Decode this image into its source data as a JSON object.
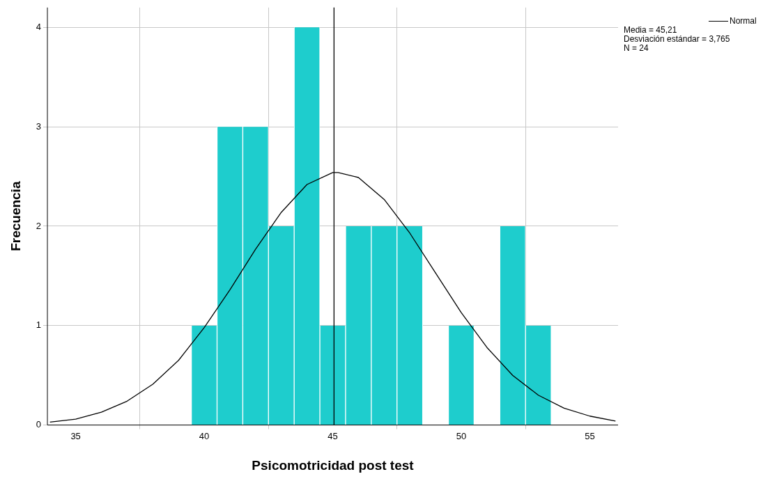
{
  "chart_data": {
    "type": "histogram",
    "xlabel": "Psicomotricidad post test",
    "ylabel": "Frecuencia",
    "bins": [
      39.5,
      40.5,
      41.5,
      42.5,
      43.5,
      44.5,
      45.5,
      46.5,
      47.5,
      48.5,
      49.5,
      50.5,
      51.5,
      52.5,
      53.5
    ],
    "values": [
      1,
      3,
      3,
      2,
      4,
      1,
      2,
      2,
      2,
      0,
      1,
      0,
      2,
      1
    ],
    "color": "#1ecdcd",
    "series": [
      {
        "name": "Normal",
        "type": "line",
        "color": "#000000",
        "x": [
          34,
          35,
          36,
          37,
          38,
          39,
          40,
          41,
          42,
          43,
          44,
          45,
          45.21,
          46,
          47,
          48,
          49,
          50,
          51,
          52,
          53,
          54,
          55,
          56
        ],
        "values": [
          0.03,
          0.06,
          0.13,
          0.24,
          0.41,
          0.65,
          0.98,
          1.36,
          1.77,
          2.14,
          2.42,
          2.54,
          2.54,
          2.49,
          2.27,
          1.93,
          1.53,
          1.13,
          0.78,
          0.5,
          0.3,
          0.17,
          0.09,
          0.04
        ]
      }
    ],
    "ref_lines": [
      {
        "axis": "x",
        "value": 45.05,
        "color": "#000000"
      }
    ],
    "annotations": [
      "Media = 45,21",
      "Desviación estándar = 3,765",
      "N = 24"
    ],
    "xlim": [
      33.9,
      56.1
    ],
    "xticks": [
      35,
      40,
      45,
      50,
      55
    ],
    "ylim": [
      0,
      4.2
    ],
    "yticks": [
      0,
      1,
      2,
      3,
      4
    ],
    "grid": true,
    "legend": "top right",
    "marker": "none"
  }
}
